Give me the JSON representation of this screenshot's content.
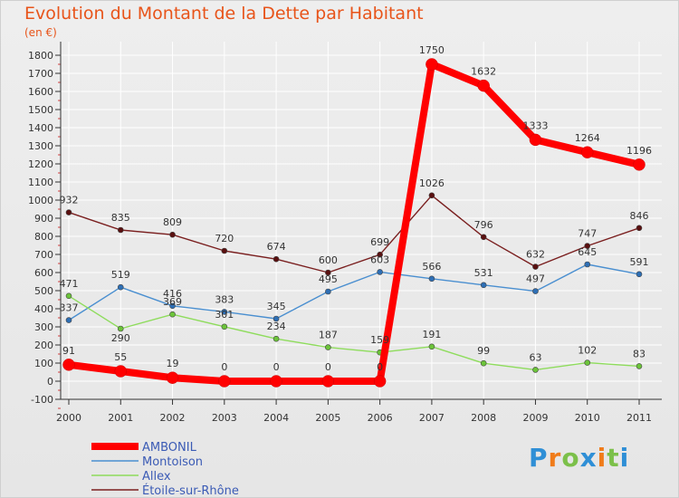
{
  "title": "Evolution du Montant de la Dette par Habitant",
  "unit": "(en €)",
  "logo": "Proxiti",
  "chart_data": {
    "type": "line",
    "categories": [
      "2000",
      "2001",
      "2002",
      "2003",
      "2004",
      "2005",
      "2006",
      "2007",
      "2008",
      "2009",
      "2010",
      "2011"
    ],
    "yticks": [
      -100,
      0,
      100,
      200,
      300,
      400,
      500,
      600,
      700,
      800,
      900,
      1000,
      1100,
      1200,
      1300,
      1400,
      1500,
      1600,
      1700,
      1800
    ],
    "ylim": [
      -100,
      1800
    ],
    "legend_position": "bottom-left",
    "series": [
      {
        "name": "AMBONIL",
        "color": "#ff0000",
        "values": [
          91,
          55,
          19,
          0,
          0,
          0,
          0,
          1750,
          1632,
          1333,
          1264,
          1196
        ]
      },
      {
        "name": "Montoison",
        "color": "#4a8fd0",
        "values": [
          337,
          519,
          416,
          383,
          345,
          495,
          603,
          566,
          531,
          497,
          645,
          591
        ]
      },
      {
        "name": "Allex",
        "color": "#8edc5c",
        "values": [
          471,
          290,
          369,
          301,
          234,
          187,
          159,
          191,
          99,
          63,
          102,
          83
        ]
      },
      {
        "name": "Étoile-sur-Rhône",
        "color": "#7a1f1f",
        "values": [
          932,
          835,
          809,
          720,
          674,
          600,
          699,
          1026,
          796,
          632,
          747,
          846
        ]
      }
    ]
  }
}
